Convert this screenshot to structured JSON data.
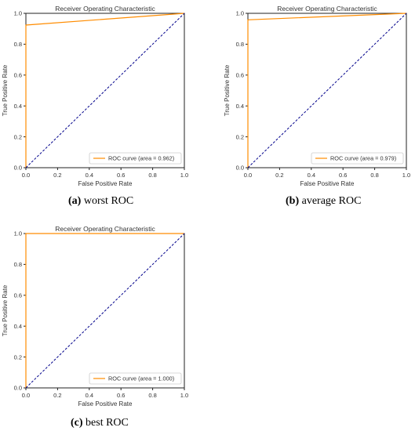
{
  "chart_data": [
    {
      "type": "line",
      "title": "Receiver Operating Characteristic",
      "xlabel": "False Positive Rate",
      "ylabel": "True Positive Rate",
      "xlim": [
        0,
        1
      ],
      "ylim": [
        0,
        1
      ],
      "xticks": [
        "0.0",
        "0.2",
        "0.4",
        "0.6",
        "0.8",
        "1.0"
      ],
      "yticks": [
        "0.0",
        "0.2",
        "0.4",
        "0.6",
        "0.8",
        "1.0"
      ],
      "grid": false,
      "legend_position": "lower-right",
      "series": [
        {
          "name": "ROC curve (area = 0.962)",
          "color": "#ff8c00",
          "style": "solid",
          "x": [
            0.0,
            0.0,
            1.0
          ],
          "y": [
            0.0,
            0.924,
            1.0
          ]
        },
        {
          "color": "#00008b",
          "style": "dashed",
          "x": [
            0,
            1
          ],
          "y": [
            0,
            1
          ]
        }
      ],
      "caption": {
        "label": "(a)",
        "text": "worst ROC"
      }
    },
    {
      "type": "line",
      "title": "Receiver Operating Characteristic",
      "xlabel": "False Positive Rate",
      "ylabel": "True Positive Rate",
      "xlim": [
        0,
        1
      ],
      "ylim": [
        0,
        1
      ],
      "xticks": [
        "0.0",
        "0.2",
        "0.4",
        "0.6",
        "0.8",
        "1.0"
      ],
      "yticks": [
        "0.0",
        "0.2",
        "0.4",
        "0.6",
        "0.8",
        "1.0"
      ],
      "grid": false,
      "legend_position": "lower-right",
      "series": [
        {
          "name": "ROC curve (area = 0.979)",
          "color": "#ff8c00",
          "style": "solid",
          "x": [
            0.0,
            0.0,
            1.0
          ],
          "y": [
            0.0,
            0.958,
            1.0
          ]
        },
        {
          "color": "#00008b",
          "style": "dashed",
          "x": [
            0,
            1
          ],
          "y": [
            0,
            1
          ]
        }
      ],
      "caption": {
        "label": "(b)",
        "text": "average ROC"
      }
    },
    {
      "type": "line",
      "title": "Receiver Operating Characteristic",
      "xlabel": "False Positive Rate",
      "ylabel": "True Positive Rate",
      "xlim": [
        0,
        1
      ],
      "ylim": [
        0,
        1
      ],
      "xticks": [
        "0.0",
        "0.2",
        "0.4",
        "0.6",
        "0.8",
        "1.0"
      ],
      "yticks": [
        "0.0",
        "0.2",
        "0.4",
        "0.6",
        "0.8",
        "1.0"
      ],
      "grid": false,
      "legend_position": "lower-right",
      "series": [
        {
          "name": "ROC curve (area = 1.000)",
          "color": "#ff8c00",
          "style": "solid",
          "x": [
            0.0,
            0.0,
            1.0
          ],
          "y": [
            0.0,
            1.0,
            1.0
          ]
        },
        {
          "color": "#00008b",
          "style": "dashed",
          "x": [
            0,
            1
          ],
          "y": [
            0,
            1
          ]
        }
      ],
      "caption": {
        "label": "(c)",
        "text": "best ROC"
      }
    }
  ]
}
